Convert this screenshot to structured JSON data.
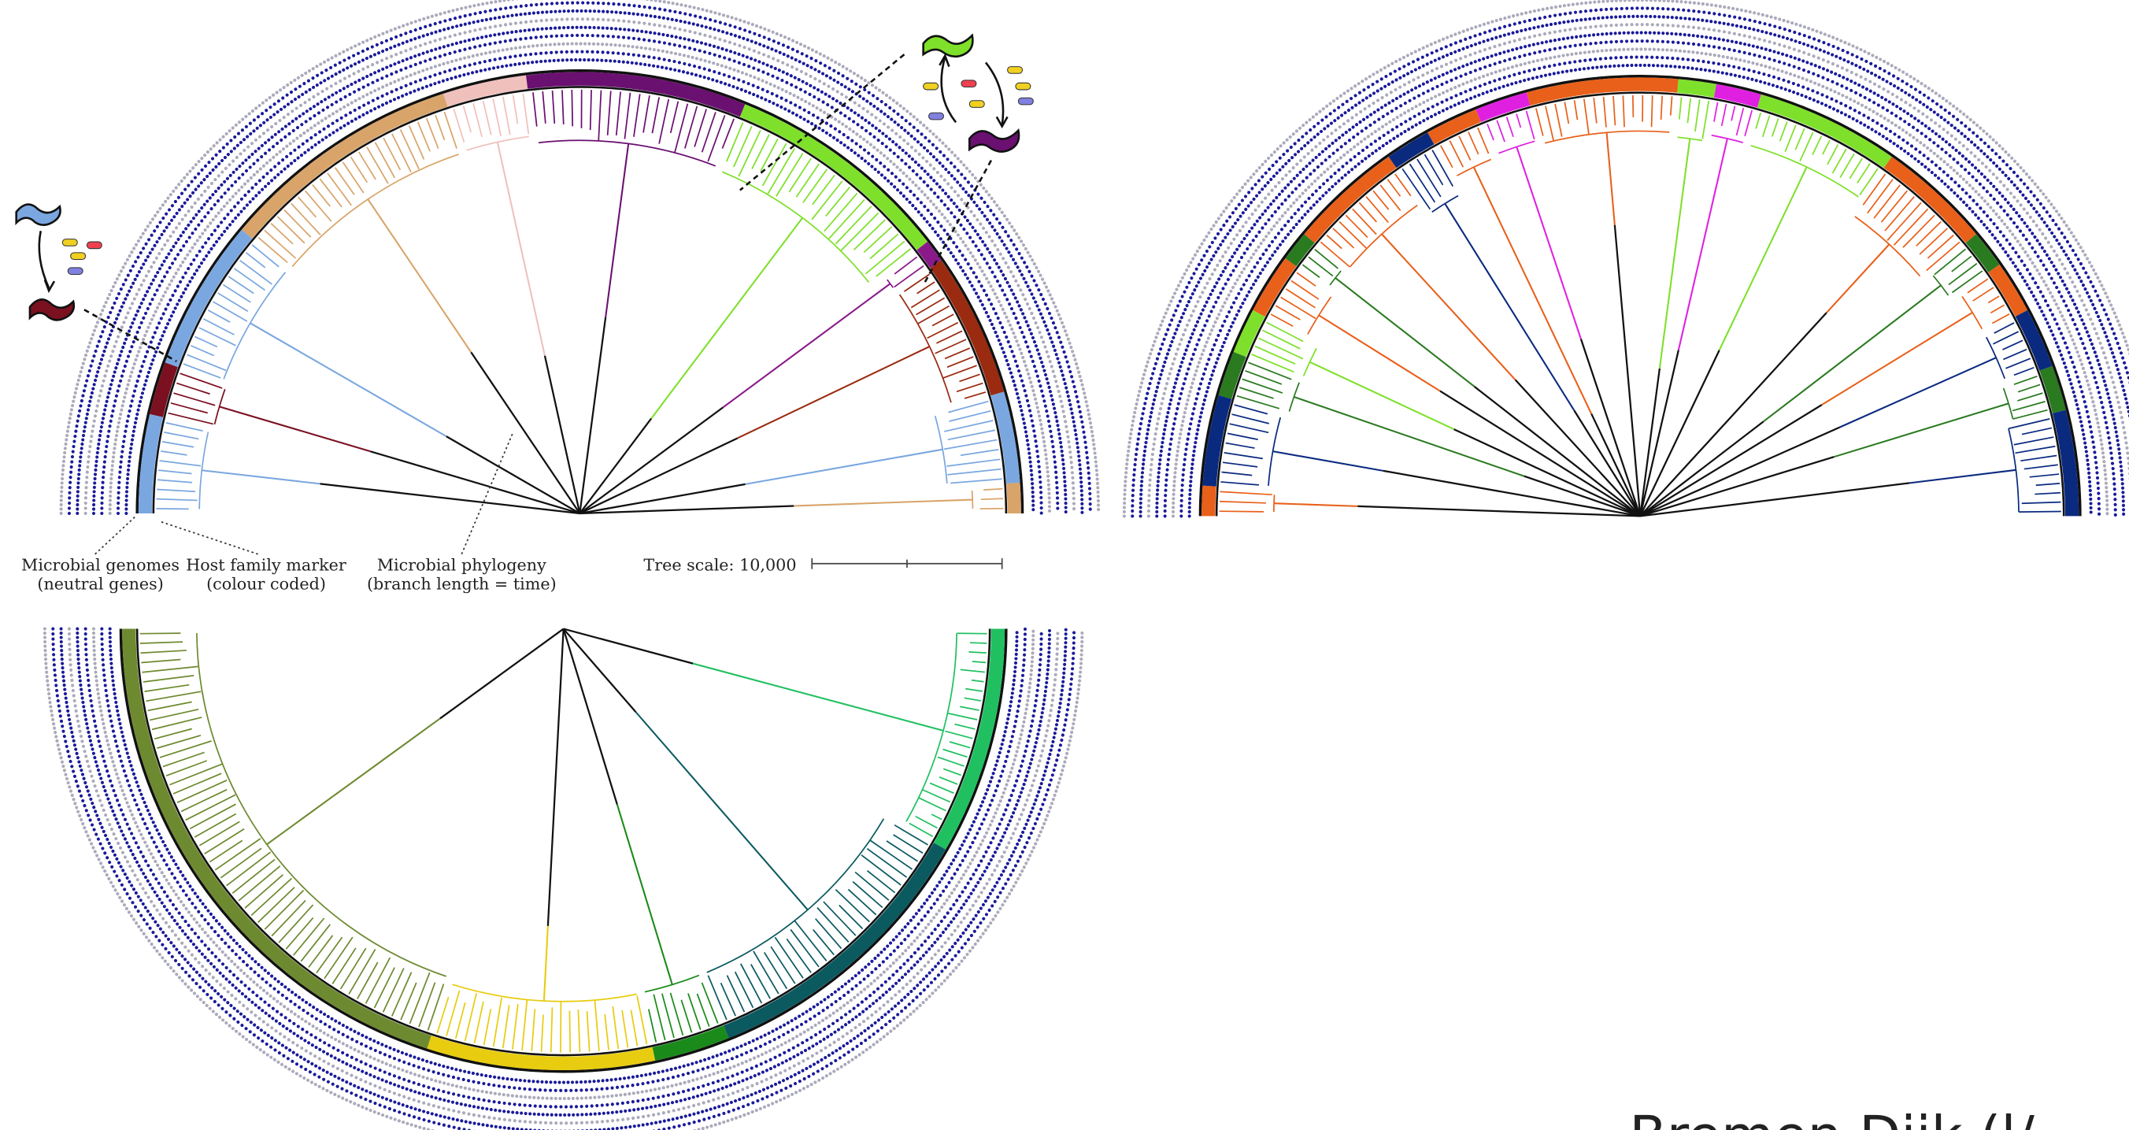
{
  "annotations": [
    {
      "lines": [
        "Microbial genomes",
        "(neutral genes)"
      ]
    },
    {
      "lines": [
        "Host family marker",
        "(colour coded)"
      ]
    },
    {
      "lines": [
        "Microbial phylogeny",
        "(branch length = time)"
      ]
    }
  ],
  "scale_label": "Tree scale: 10,000",
  "footer": "Bremen Dijk (l/"
}
